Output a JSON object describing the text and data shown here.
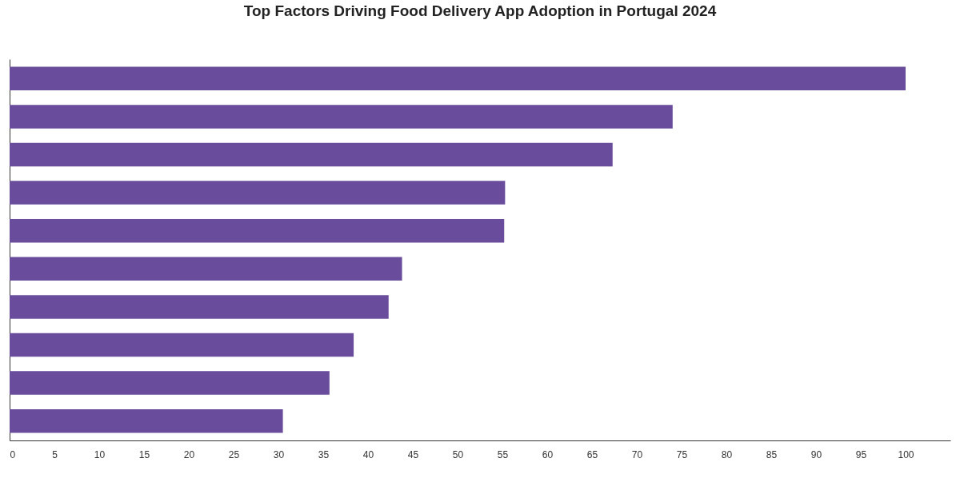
{
  "chart_data": {
    "type": "bar",
    "orientation": "horizontal",
    "title": "Top Factors Driving Food Delivery App Adoption in Portugal 2024",
    "categories": [
      null,
      null,
      null,
      null,
      null,
      null,
      null,
      null,
      null,
      null
    ],
    "values": [
      100,
      74,
      67.3,
      55.3,
      55.2,
      43.8,
      42.3,
      38.4,
      35.7,
      30.5
    ],
    "color": "#6a4c9c",
    "xlim": [
      0,
      105
    ],
    "xticks": [
      0,
      5,
      10,
      15,
      20,
      25,
      30,
      35,
      40,
      45,
      50,
      55,
      60,
      65,
      70,
      75,
      80,
      85,
      90,
      95,
      100
    ],
    "grid": false
  }
}
